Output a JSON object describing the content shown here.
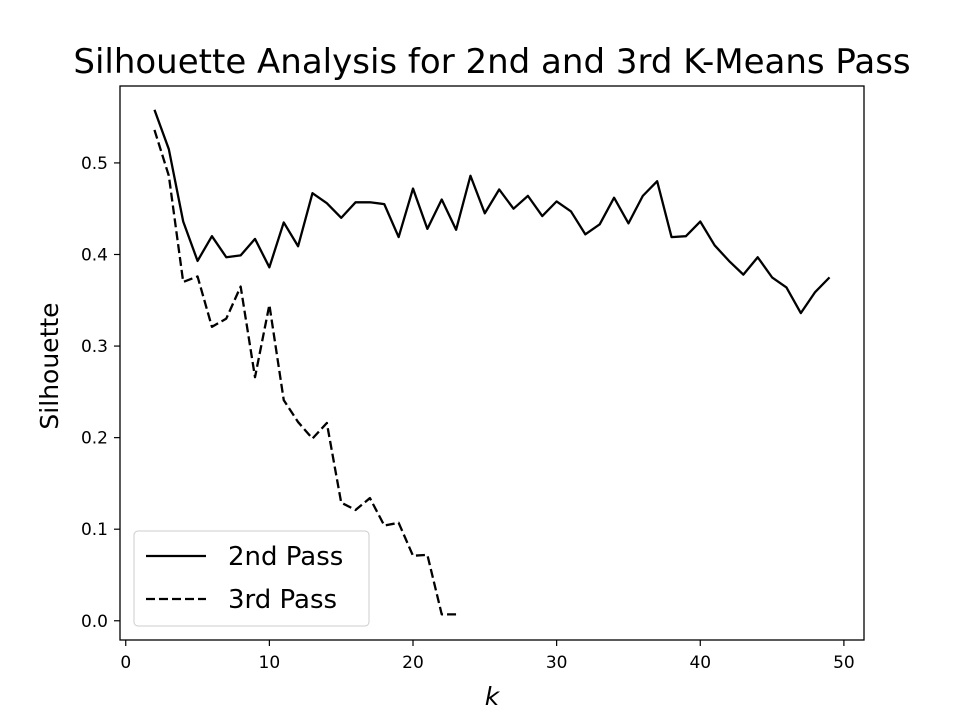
{
  "chart_data": {
    "type": "line",
    "title": "Silhouette Analysis for 2nd and 3rd K-Means Pass",
    "xlabel": "k",
    "ylabel": "Silhouette",
    "xlim": [
      -0.4,
      51.4
    ],
    "ylim": [
      -0.021,
      0.584
    ],
    "xticks": [
      0,
      10,
      20,
      30,
      40,
      50
    ],
    "xtick_labels": [
      "0",
      "10",
      "20",
      "30",
      "40",
      "50"
    ],
    "yticks": [
      0.0,
      0.1,
      0.2,
      0.3,
      0.4,
      0.5
    ],
    "ytick_labels": [
      "0.0",
      "0.1",
      "0.2",
      "0.3",
      "0.4",
      "0.5"
    ],
    "grid": false,
    "legend": {
      "position": "lower-left"
    },
    "series": [
      {
        "name": "2nd Pass",
        "line_style": "solid",
        "color": "#000000",
        "x": [
          2,
          3,
          4,
          5,
          6,
          7,
          8,
          9,
          10,
          11,
          12,
          13,
          14,
          15,
          16,
          17,
          18,
          19,
          20,
          21,
          22,
          23,
          24,
          25,
          26,
          27,
          28,
          29,
          30,
          31,
          32,
          33,
          34,
          35,
          36,
          37,
          38,
          39,
          40,
          41,
          42,
          43,
          44,
          45,
          46,
          47,
          48,
          49
        ],
        "y": [
          0.558,
          0.515,
          0.436,
          0.393,
          0.42,
          0.397,
          0.399,
          0.417,
          0.386,
          0.435,
          0.409,
          0.467,
          0.456,
          0.44,
          0.457,
          0.457,
          0.455,
          0.419,
          0.472,
          0.428,
          0.46,
          0.427,
          0.486,
          0.445,
          0.471,
          0.45,
          0.464,
          0.442,
          0.458,
          0.447,
          0.422,
          0.433,
          0.462,
          0.434,
          0.464,
          0.48,
          0.419,
          0.42,
          0.436,
          0.41,
          0.393,
          0.378,
          0.397,
          0.375,
          0.364,
          0.336,
          0.359,
          0.375
        ]
      },
      {
        "name": "3rd Pass",
        "line_style": "dashed",
        "color": "#000000",
        "x": [
          2,
          3,
          4,
          5,
          6,
          7,
          8,
          9,
          10,
          11,
          12,
          13,
          14,
          15,
          16,
          17,
          18,
          19,
          20,
          21,
          22,
          23
        ],
        "y": [
          0.536,
          0.486,
          0.37,
          0.376,
          0.321,
          0.33,
          0.365,
          0.266,
          0.345,
          0.241,
          0.217,
          0.199,
          0.216,
          0.129,
          0.121,
          0.134,
          0.104,
          0.107,
          0.071,
          0.072,
          0.007,
          0.007
        ]
      }
    ]
  }
}
